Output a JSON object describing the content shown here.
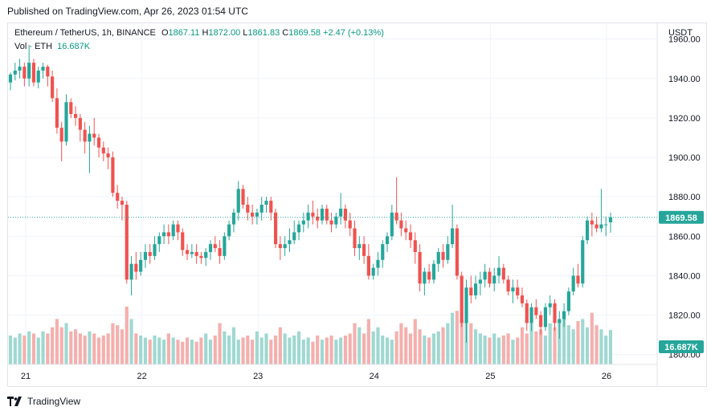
{
  "header": {
    "published": "Published on TradingView.com, Apr 26, 2023 01:54 UTC"
  },
  "legend": {
    "symbol": "Ethereum / TetherUS, 1h, BINANCE",
    "o_label": "O",
    "o": "1867.11",
    "h_label": "H",
    "h": "1872.00",
    "l_label": "L",
    "l": "1861.83",
    "c_label": "C",
    "c": "1869.58",
    "change": "+2.47 (+0.13%)",
    "vol_label": "Vol · ETH",
    "vol_value": "16.687K"
  },
  "footer": {
    "brand": "TradingView"
  },
  "colors": {
    "up": "#26a69a",
    "down": "#ef5350",
    "up_text": "#089981",
    "vol_up": "#9fd8d1",
    "vol_down": "#f4b0ae"
  },
  "chart_data": {
    "type": "candlestick",
    "symbol": "Ethereum / TetherUS",
    "interval": "1h",
    "exchange": "BINANCE",
    "currency": "USDT",
    "price_axis": {
      "label": "USDT",
      "ticks": [
        1800,
        1820,
        1840,
        1860,
        1880,
        1900,
        1920,
        1940,
        1960
      ],
      "range": [
        1795,
        1968
      ]
    },
    "time_axis": {
      "ticks": [
        "21",
        "22",
        "23",
        "24",
        "25",
        "26"
      ]
    },
    "last_price": "1869.58",
    "last_volume": "16.687K",
    "ohlc_stroke": [
      [
        1938,
        1943,
        1934,
        1942
      ],
      [
        1942,
        1948,
        1939,
        1944
      ],
      [
        1944,
        1950,
        1940,
        1946
      ],
      [
        1946,
        1948,
        1936,
        1940
      ],
      [
        1940,
        1957,
        1936,
        1948
      ],
      [
        1948,
        1950,
        1936,
        1938
      ],
      [
        1938,
        1946,
        1935,
        1944
      ],
      [
        1944,
        1948,
        1940,
        1946
      ],
      [
        1946,
        1947,
        1936,
        1941
      ],
      [
        1941,
        1944,
        1928,
        1930
      ],
      [
        1930,
        1935,
        1912,
        1915
      ],
      [
        1915,
        1918,
        1898,
        1908
      ],
      [
        1908,
        1932,
        1906,
        1928
      ],
      [
        1928,
        1930,
        1920,
        1922
      ],
      [
        1922,
        1926,
        1916,
        1920
      ],
      [
        1920,
        1922,
        1908,
        1914
      ],
      [
        1914,
        1918,
        1902,
        1908
      ],
      [
        1908,
        1916,
        1892,
        1912
      ],
      [
        1912,
        1920,
        1906,
        1910
      ],
      [
        1910,
        1912,
        1900,
        1905
      ],
      [
        1905,
        1908,
        1898,
        1902
      ],
      [
        1902,
        1905,
        1894,
        1900
      ],
      [
        1900,
        1903,
        1880,
        1882
      ],
      [
        1882,
        1886,
        1874,
        1878
      ],
      [
        1878,
        1880,
        1868,
        1876
      ],
      [
        1876,
        1878,
        1836,
        1838
      ],
      [
        1838,
        1850,
        1830,
        1846
      ],
      [
        1846,
        1852,
        1838,
        1842
      ],
      [
        1842,
        1852,
        1840,
        1848
      ],
      [
        1848,
        1856,
        1844,
        1852
      ],
      [
        1852,
        1856,
        1846,
        1850
      ],
      [
        1850,
        1860,
        1848,
        1856
      ],
      [
        1856,
        1862,
        1852,
        1860
      ],
      [
        1860,
        1866,
        1856,
        1862
      ],
      [
        1862,
        1866,
        1856,
        1860
      ],
      [
        1860,
        1868,
        1858,
        1866
      ],
      [
        1866,
        1868,
        1858,
        1862
      ],
      [
        1862,
        1864,
        1850,
        1853
      ],
      [
        1853,
        1856,
        1848,
        1851
      ],
      [
        1851,
        1856,
        1849,
        1852
      ],
      [
        1852,
        1856,
        1846,
        1850
      ],
      [
        1850,
        1852,
        1846,
        1849
      ],
      [
        1849,
        1854,
        1845,
        1852
      ],
      [
        1852,
        1858,
        1848,
        1856
      ],
      [
        1856,
        1860,
        1852,
        1854
      ],
      [
        1854,
        1858,
        1846,
        1850
      ],
      [
        1850,
        1862,
        1848,
        1860
      ],
      [
        1860,
        1868,
        1858,
        1866
      ],
      [
        1866,
        1874,
        1862,
        1872
      ],
      [
        1872,
        1888,
        1868,
        1884
      ],
      [
        1884,
        1886,
        1874,
        1876
      ],
      [
        1876,
        1880,
        1868,
        1872
      ],
      [
        1872,
        1876,
        1866,
        1870
      ],
      [
        1870,
        1874,
        1866,
        1872
      ],
      [
        1872,
        1880,
        1868,
        1876
      ],
      [
        1876,
        1880,
        1872,
        1878
      ],
      [
        1878,
        1880,
        1868,
        1872
      ],
      [
        1872,
        1874,
        1854,
        1856
      ],
      [
        1856,
        1860,
        1848,
        1854
      ],
      [
        1854,
        1860,
        1850,
        1856
      ],
      [
        1856,
        1864,
        1852,
        1858
      ],
      [
        1858,
        1868,
        1856,
        1862
      ],
      [
        1862,
        1868,
        1858,
        1866
      ],
      [
        1866,
        1872,
        1862,
        1868
      ],
      [
        1868,
        1876,
        1864,
        1872
      ],
      [
        1872,
        1878,
        1866,
        1870
      ],
      [
        1870,
        1874,
        1864,
        1868
      ],
      [
        1868,
        1876,
        1866,
        1874
      ],
      [
        1874,
        1876,
        1866,
        1868
      ],
      [
        1868,
        1872,
        1862,
        1866
      ],
      [
        1866,
        1872,
        1864,
        1870
      ],
      [
        1870,
        1882,
        1866,
        1874
      ],
      [
        1874,
        1876,
        1864,
        1868
      ],
      [
        1868,
        1872,
        1860,
        1864
      ],
      [
        1864,
        1868,
        1850,
        1854
      ],
      [
        1854,
        1860,
        1848,
        1856
      ],
      [
        1856,
        1860,
        1846,
        1850
      ],
      [
        1850,
        1856,
        1838,
        1840
      ],
      [
        1840,
        1846,
        1838,
        1844
      ],
      [
        1844,
        1852,
        1840,
        1848
      ],
      [
        1848,
        1858,
        1844,
        1856
      ],
      [
        1856,
        1862,
        1852,
        1860
      ],
      [
        1860,
        1876,
        1858,
        1872
      ],
      [
        1872,
        1890,
        1866,
        1868
      ],
      [
        1868,
        1872,
        1860,
        1864
      ],
      [
        1864,
        1868,
        1858,
        1862
      ],
      [
        1862,
        1866,
        1854,
        1858
      ],
      [
        1858,
        1862,
        1846,
        1852
      ],
      [
        1852,
        1856,
        1832,
        1836
      ],
      [
        1836,
        1844,
        1830,
        1842
      ],
      [
        1842,
        1846,
        1836,
        1838
      ],
      [
        1838,
        1848,
        1836,
        1846
      ],
      [
        1846,
        1854,
        1842,
        1852
      ],
      [
        1852,
        1856,
        1844,
        1848
      ],
      [
        1848,
        1860,
        1846,
        1856
      ],
      [
        1856,
        1876,
        1854,
        1864
      ],
      [
        1864,
        1866,
        1838,
        1840
      ],
      [
        1840,
        1842,
        1814,
        1816
      ],
      [
        1816,
        1838,
        1806,
        1834
      ],
      [
        1834,
        1840,
        1826,
        1830
      ],
      [
        1830,
        1840,
        1828,
        1836
      ],
      [
        1836,
        1842,
        1830,
        1838
      ],
      [
        1838,
        1846,
        1834,
        1842
      ],
      [
        1842,
        1844,
        1834,
        1836
      ],
      [
        1836,
        1844,
        1832,
        1840
      ],
      [
        1840,
        1850,
        1836,
        1844
      ],
      [
        1844,
        1846,
        1836,
        1838
      ],
      [
        1838,
        1840,
        1830,
        1832
      ],
      [
        1832,
        1838,
        1826,
        1834
      ],
      [
        1834,
        1838,
        1828,
        1830
      ],
      [
        1830,
        1834,
        1824,
        1826
      ],
      [
        1826,
        1828,
        1812,
        1816
      ],
      [
        1816,
        1826,
        1812,
        1824
      ],
      [
        1824,
        1828,
        1818,
        1820
      ],
      [
        1820,
        1822,
        1810,
        1814
      ],
      [
        1814,
        1826,
        1812,
        1824
      ],
      [
        1824,
        1830,
        1820,
        1826
      ],
      [
        1826,
        1828,
        1812,
        1816
      ],
      [
        1816,
        1822,
        1808,
        1818
      ],
      [
        1818,
        1826,
        1814,
        1822
      ],
      [
        1822,
        1834,
        1820,
        1832
      ],
      [
        1832,
        1844,
        1830,
        1840
      ],
      [
        1840,
        1846,
        1834,
        1836
      ],
      [
        1836,
        1860,
        1834,
        1858
      ],
      [
        1858,
        1870,
        1856,
        1868
      ],
      [
        1868,
        1872,
        1860,
        1866
      ],
      [
        1866,
        1870,
        1862,
        1864
      ],
      [
        1864,
        1884,
        1862,
        1866
      ],
      [
        1866,
        1870,
        1860,
        1866
      ],
      [
        1867.11,
        1872.0,
        1861.83,
        1869.58
      ]
    ],
    "volumes": [
      14,
      13,
      15,
      14,
      16,
      15,
      13,
      16,
      15,
      18,
      22,
      18,
      20,
      16,
      17,
      15,
      14,
      16,
      15,
      13,
      14,
      15,
      20,
      19,
      17,
      28,
      22,
      15,
      14,
      13,
      12,
      14,
      13,
      12,
      15,
      13,
      12,
      11,
      13,
      12,
      11,
      13,
      15,
      12,
      14,
      20,
      16,
      14,
      18,
      12,
      13,
      14,
      12,
      16,
      13,
      15,
      12,
      14,
      18,
      15,
      13,
      14,
      16,
      12,
      13,
      11,
      14,
      12,
      13,
      14,
      12,
      13,
      14,
      15,
      20,
      18,
      15,
      22,
      16,
      18,
      14,
      13,
      12,
      16,
      20,
      18,
      15,
      22,
      17,
      14,
      13,
      15,
      16,
      18,
      20,
      25,
      26,
      22,
      21,
      20,
      17,
      15,
      14,
      13,
      15,
      13,
      14,
      15,
      12,
      13,
      18,
      15,
      20,
      16,
      17,
      14,
      20,
      18,
      22,
      25,
      19,
      17,
      21,
      22,
      18,
      25,
      19,
      17,
      14,
      16.687
    ]
  }
}
